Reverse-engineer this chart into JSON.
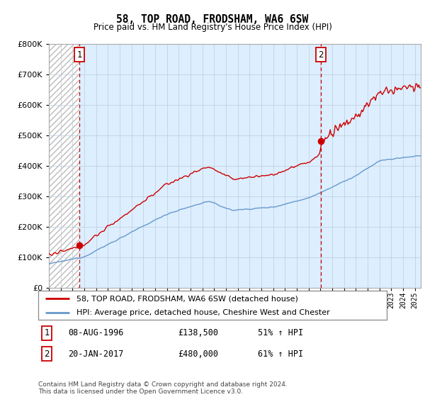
{
  "title": "58, TOP ROAD, FRODSHAM, WA6 6SW",
  "subtitle": "Price paid vs. HM Land Registry's House Price Index (HPI)",
  "legend_line1": "58, TOP ROAD, FRODSHAM, WA6 6SW (detached house)",
  "legend_line2": "HPI: Average price, detached house, Cheshire West and Chester",
  "transaction1_label": "1",
  "transaction1_date": "08-AUG-1996",
  "transaction1_price": "£138,500",
  "transaction1_hpi": "51% ↑ HPI",
  "transaction2_label": "2",
  "transaction2_date": "20-JAN-2017",
  "transaction2_price": "£480,000",
  "transaction2_hpi": "61% ↑ HPI",
  "footer": "Contains HM Land Registry data © Crown copyright and database right 2024.\nThis data is licensed under the Open Government Licence v3.0.",
  "red_color": "#cc0000",
  "blue_color": "#6699cc",
  "bg_color": "#ddeeff",
  "hatch_color": "#bbbbbb",
  "grid_color": "#bbccdd",
  "ylim_min": 0,
  "ylim_max": 800000,
  "sale1_year": 1996.6,
  "sale1_price": 138500,
  "sale2_year": 2017.05,
  "sale2_price": 480000,
  "xmin": 1994,
  "xmax": 2025.5
}
